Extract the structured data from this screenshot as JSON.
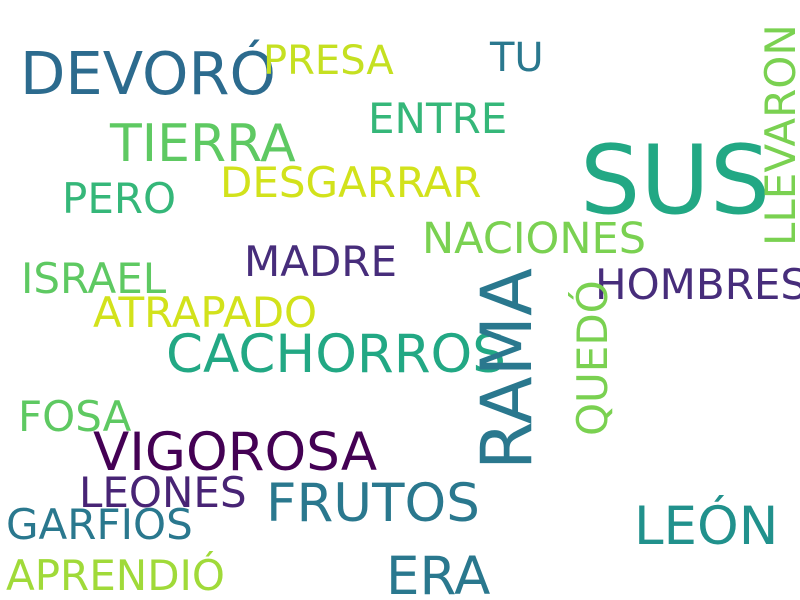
{
  "words": {
    "sus": {
      "text": "SUS",
      "color": "#22a884"
    },
    "rama": {
      "text": "RAMA",
      "color": "#2a788e"
    },
    "devoro": {
      "text": "DEVORÓ",
      "color": "#2c6b8e"
    },
    "cachorros": {
      "text": "CACHORROS",
      "color": "#22a884"
    },
    "vigorosa": {
      "text": "VIGOROSA",
      "color": "#440154"
    },
    "frutos": {
      "text": "FRUTOS",
      "color": "#2a788e"
    },
    "tierra": {
      "text": "TIERRA",
      "color": "#5ec962"
    },
    "leon": {
      "text": "LEÓN",
      "color": "#21918c"
    },
    "era": {
      "text": "ERA",
      "color": "#2a788e"
    },
    "nacionales": {
      "text": "NACIONES",
      "color": "#7ad151"
    },
    "desgarrar": {
      "text": "DESGARRAR",
      "color": "#d2e21b"
    },
    "hombres": {
      "text": "HOMBRES",
      "color": "#472d7b"
    },
    "madre": {
      "text": "MADRE",
      "color": "#472d7b"
    },
    "atrapado": {
      "text": "ATRAPADO",
      "color": "#d2e21b"
    },
    "israel": {
      "text": "ISRAEL",
      "color": "#5ec962"
    },
    "presa": {
      "text": "PRESA",
      "color": "#c5e021"
    },
    "entre": {
      "text": "ENTRE",
      "color": "#35b779"
    },
    "tu": {
      "text": "TU",
      "color": "#2a788e"
    },
    "pero": {
      "text": "PERO",
      "color": "#35b779"
    },
    "fosa": {
      "text": "FOSA",
      "color": "#5ec962"
    },
    "leones": {
      "text": "LEONES",
      "color": "#482475"
    },
    "garfios": {
      "text": "GARFIOS",
      "color": "#2a788e"
    },
    "aprendio": {
      "text": "APRENDIÓ",
      "color": "#a0da39"
    },
    "llevaron": {
      "text": "LLEVARON",
      "color": "#7ad151"
    },
    "quedo": {
      "text": "QUEDÓ",
      "color": "#7ad151"
    }
  }
}
